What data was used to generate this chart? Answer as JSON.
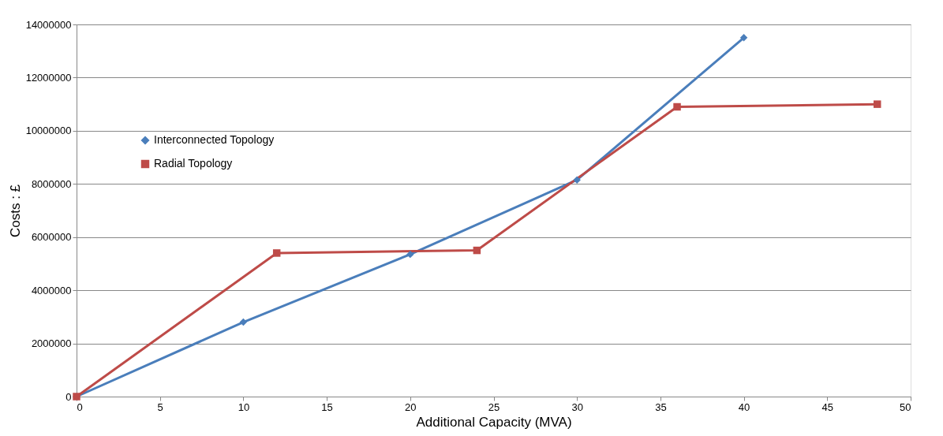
{
  "chart_data": {
    "type": "line",
    "xlabel": "Additional Capacity (MVA)",
    "ylabel": "Costs : £",
    "series": [
      {
        "name": "Interconnected Topology",
        "color": "#4a7ebb",
        "marker": "diamond",
        "x": [
          0,
          10,
          20,
          30,
          40
        ],
        "values": [
          0,
          2800000,
          5350000,
          8150000,
          13500000
        ]
      },
      {
        "name": "Radial Topology",
        "color": "#be4b48",
        "marker": "square",
        "x": [
          0,
          12,
          24,
          36,
          48
        ],
        "values": [
          0,
          5400000,
          5500000,
          10900000,
          11000000
        ]
      }
    ],
    "xlim": [
      0,
      50
    ],
    "xticks": [
      0,
      5,
      10,
      15,
      20,
      25,
      30,
      35,
      40,
      45,
      50
    ],
    "ylim": [
      0,
      14000000
    ],
    "yticks": [
      0,
      2000000,
      4000000,
      6000000,
      8000000,
      10000000,
      12000000,
      14000000
    ],
    "grid": "y",
    "legend": "top left",
    "line_style": "solid"
  }
}
